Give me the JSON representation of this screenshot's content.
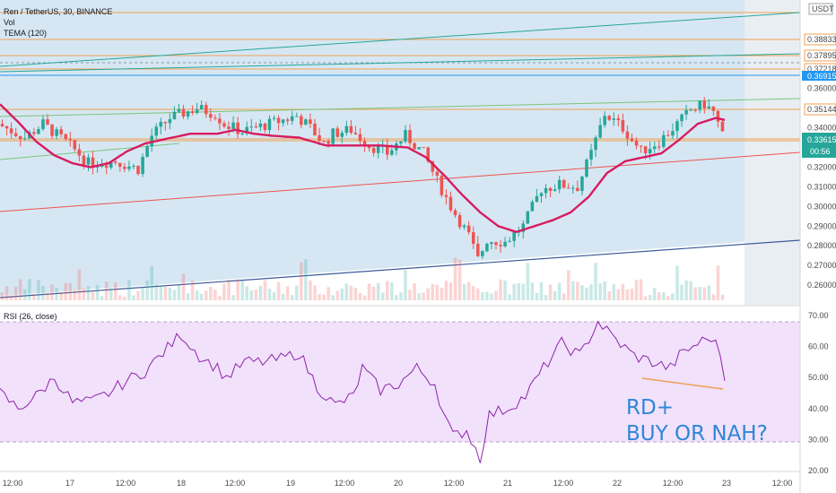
{
  "header": {
    "symbol_line": "Ren / TetherUS, 30, BINANCE",
    "vol_label": "Vol",
    "tema_label": "TEMA (120)",
    "currency_badge": "USDT"
  },
  "rsi_header": "RSI (26, close)",
  "annotation": {
    "line1": "RD+",
    "line2": "BUY OR NAH?"
  },
  "colors": {
    "candle_up": "#26a69a",
    "candle_down": "#ef5350",
    "tema": "#d81b60",
    "channel_fill": "#b9d6ea",
    "rsi_band": "#f1e1fb",
    "rsi_line": "#8e24aa",
    "annotation": "#2f86d6",
    "price_badge": "#26a69a",
    "blue_badge": "#2196f3",
    "orange_line": "#f0a050"
  },
  "chart_data": [
    {
      "type": "candlestick",
      "ylim": [
        0.25,
        0.405
      ],
      "x_tick_labels": [
        "12:00",
        "17",
        "12:00",
        "18",
        "12:00",
        "19",
        "12:00",
        "20",
        "12:00",
        "21",
        "12:00",
        "22",
        "12:00",
        "23",
        "12:00"
      ],
      "y_tick_labels": [
        "0.38833",
        "0.37895",
        "0.37218",
        "0.36915",
        "0.36000",
        "0.35144",
        "0.34000",
        "0.33615",
        "0.32000",
        "0.31000",
        "0.30000",
        "0.29000",
        "0.28000",
        "0.27000",
        "0.26000"
      ],
      "price_label_values": [
        0.38833,
        0.37895,
        0.37218,
        0.35144
      ],
      "last_price": "0.33615",
      "countdown": "00:56",
      "blue_level": "0.36915",
      "indicators": [
        "Vol",
        "TEMA (120)"
      ],
      "close_path": [
        [
          0,
          0.342
        ],
        [
          6,
          0.335
        ],
        [
          10,
          0.342
        ],
        [
          16,
          0.331
        ],
        [
          20,
          0.322
        ],
        [
          26,
          0.323
        ],
        [
          31,
          0.319
        ],
        [
          34,
          0.336
        ],
        [
          38,
          0.345
        ],
        [
          44,
          0.35
        ],
        [
          48,
          0.347
        ],
        [
          50,
          0.342
        ],
        [
          54,
          0.338
        ],
        [
          60,
          0.342
        ],
        [
          66,
          0.346
        ],
        [
          69,
          0.34
        ],
        [
          72,
          0.332
        ],
        [
          74,
          0.337
        ],
        [
          78,
          0.339
        ],
        [
          82,
          0.331
        ],
        [
          86,
          0.327
        ],
        [
          90,
          0.336
        ],
        [
          94,
          0.327
        ],
        [
          97,
          0.313
        ],
        [
          100,
          0.3
        ],
        [
          104,
          0.285
        ],
        [
          106,
          0.273
        ],
        [
          108,
          0.283
        ],
        [
          112,
          0.282
        ],
        [
          116,
          0.29
        ],
        [
          120,
          0.309
        ],
        [
          124,
          0.311
        ],
        [
          128,
          0.31
        ],
        [
          131,
          0.327
        ],
        [
          134,
          0.347
        ],
        [
          138,
          0.34
        ],
        [
          142,
          0.328
        ],
        [
          146,
          0.333
        ],
        [
          150,
          0.342
        ],
        [
          153,
          0.349
        ],
        [
          156,
          0.352
        ],
        [
          158,
          0.348
        ],
        [
          160,
          0.336
        ]
      ],
      "tema_path": [
        [
          0,
          0.352
        ],
        [
          4,
          0.343
        ],
        [
          8,
          0.333
        ],
        [
          12,
          0.326
        ],
        [
          16,
          0.322
        ],
        [
          20,
          0.32
        ],
        [
          24,
          0.322
        ],
        [
          28,
          0.328
        ],
        [
          32,
          0.332
        ],
        [
          36,
          0.334
        ],
        [
          42,
          0.337
        ],
        [
          48,
          0.337
        ],
        [
          52,
          0.339
        ],
        [
          56,
          0.337
        ],
        [
          60,
          0.336
        ],
        [
          66,
          0.335
        ],
        [
          72,
          0.331
        ],
        [
          78,
          0.331
        ],
        [
          84,
          0.331
        ],
        [
          90,
          0.33
        ],
        [
          94,
          0.325
        ],
        [
          98,
          0.316
        ],
        [
          102,
          0.306
        ],
        [
          106,
          0.297
        ],
        [
          110,
          0.29
        ],
        [
          114,
          0.287
        ],
        [
          118,
          0.29
        ],
        [
          122,
          0.293
        ],
        [
          126,
          0.297
        ],
        [
          130,
          0.305
        ],
        [
          134,
          0.317
        ],
        [
          138,
          0.323
        ],
        [
          142,
          0.325
        ],
        [
          146,
          0.327
        ],
        [
          150,
          0.334
        ],
        [
          154,
          0.342
        ],
        [
          158,
          0.345
        ],
        [
          160,
          0.344
        ]
      ]
    },
    {
      "type": "line",
      "name": "RSI (26, close)",
      "ylim": [
        20,
        72
      ],
      "y_tick_labels": [
        "70.00",
        "60.00",
        "50.00",
        "40.00",
        "30.00",
        "20.00"
      ],
      "bands": [
        30,
        70
      ],
      "values": [
        [
          0,
          45
        ],
        [
          4,
          40
        ],
        [
          8,
          44
        ],
        [
          12,
          50
        ],
        [
          16,
          42
        ],
        [
          20,
          42
        ],
        [
          24,
          45
        ],
        [
          28,
          49
        ],
        [
          32,
          52
        ],
        [
          36,
          58
        ],
        [
          40,
          64
        ],
        [
          44,
          57
        ],
        [
          48,
          53
        ],
        [
          50,
          50
        ],
        [
          54,
          55
        ],
        [
          58,
          55
        ],
        [
          62,
          56
        ],
        [
          66,
          58
        ],
        [
          70,
          47
        ],
        [
          74,
          41
        ],
        [
          78,
          44
        ],
        [
          80,
          53
        ],
        [
          84,
          46
        ],
        [
          88,
          48
        ],
        [
          92,
          53
        ],
        [
          96,
          48
        ],
        [
          98,
          38
        ],
        [
          100,
          31
        ],
        [
          103,
          33
        ],
        [
          106,
          24
        ],
        [
          108,
          38
        ],
        [
          112,
          40
        ],
        [
          116,
          44
        ],
        [
          120,
          53
        ],
        [
          124,
          61
        ],
        [
          128,
          57
        ],
        [
          132,
          68
        ],
        [
          136,
          62
        ],
        [
          140,
          57
        ],
        [
          144,
          55
        ],
        [
          148,
          53
        ],
        [
          150,
          57
        ],
        [
          154,
          61
        ],
        [
          157,
          63
        ],
        [
          159,
          58
        ],
        [
          160,
          49
        ]
      ]
    }
  ]
}
